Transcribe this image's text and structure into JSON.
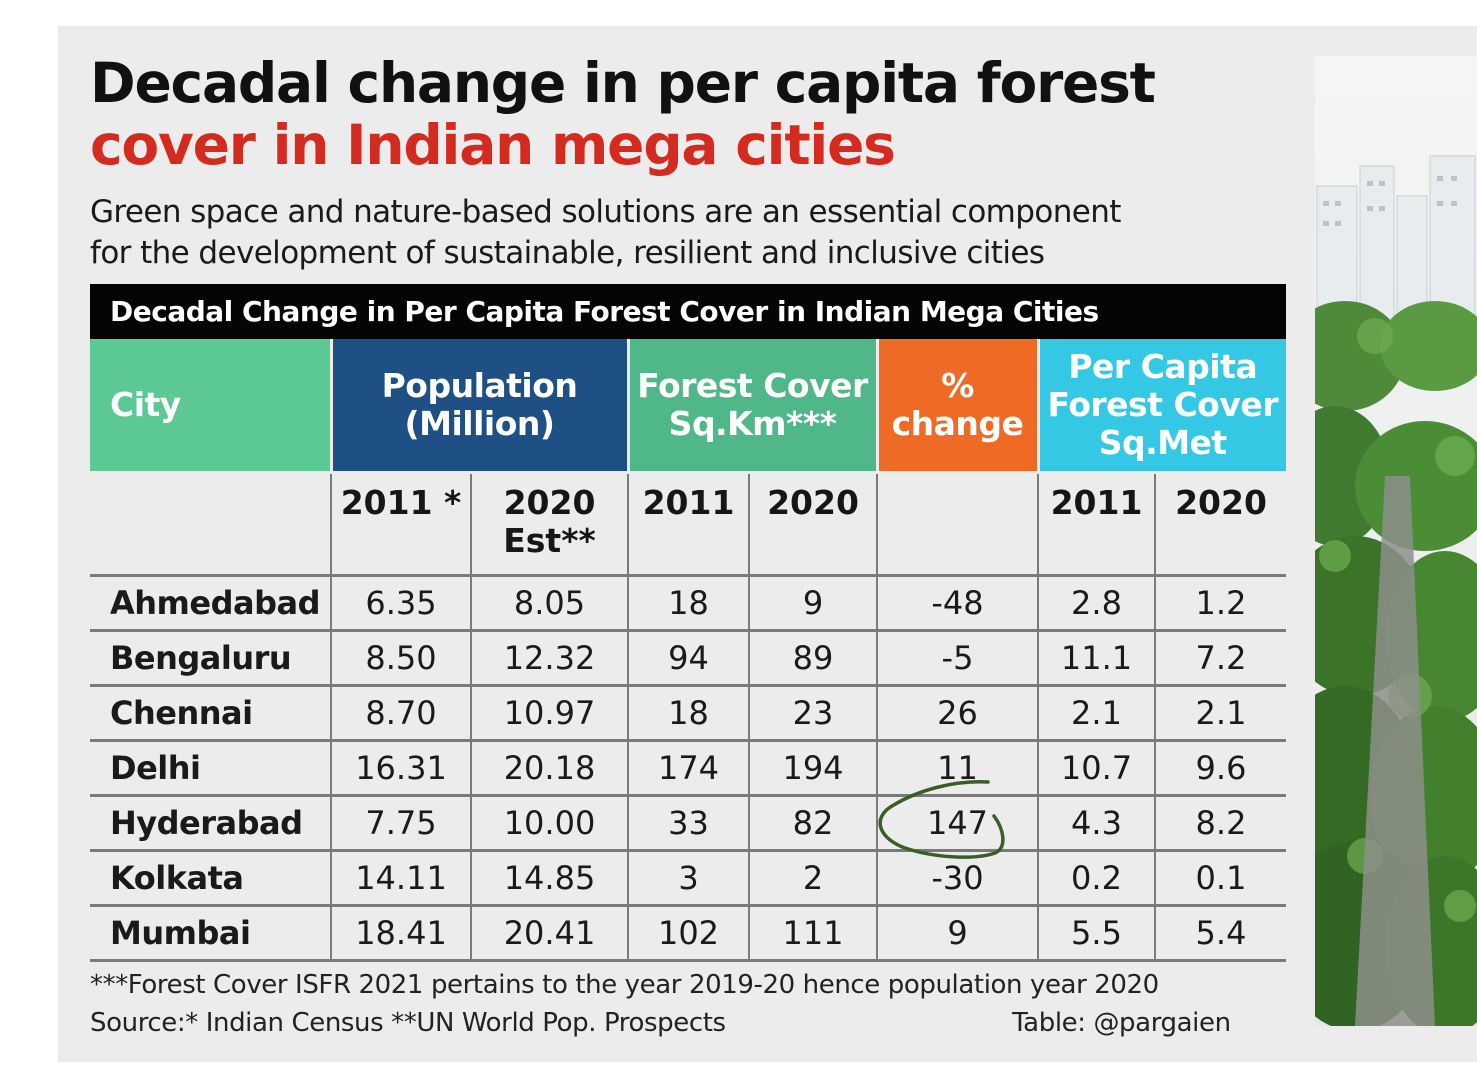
{
  "title_line1": "Decadal change in per capita forest",
  "title_line2": "cover in Indian mega cities",
  "subtitle_line1": "Green space and nature-based solutions are an essential component",
  "subtitle_line2": "for the development of sustainable, resilient and inclusive cities",
  "table_title": "Decadal  Change in Per Capita Forest Cover in Indian Mega Cities",
  "groups": {
    "city": "City",
    "population_l1": "Population",
    "population_l2": "(Million)",
    "forest_l1": "Forest Cover",
    "forest_l2": "Sq.Km***",
    "change_l1": "%",
    "change_l2": "change",
    "percap_l1": "Per Capita",
    "percap_l2": "Forest Cover",
    "percap_l3": "Sq.Met"
  },
  "subheaders": {
    "pop_2011": "2011 *",
    "pop_2020_l1": "2020",
    "pop_2020_l2": "Est**",
    "forest_2011": "2011",
    "forest_2020": "2020",
    "percap_2011": "2011",
    "percap_2020": "2020"
  },
  "rows": [
    {
      "city": "Ahmedabad",
      "pop2011": "6.35",
      "pop2020": "8.05",
      "fc2011": "18",
      "fc2020": "9",
      "change": "-48",
      "pc2011": "2.8",
      "pc2020": "1.2"
    },
    {
      "city": "Bengaluru",
      "pop2011": "8.50",
      "pop2020": "12.32",
      "fc2011": "94",
      "fc2020": "89",
      "change": "-5",
      "pc2011": "11.1",
      "pc2020": "7.2"
    },
    {
      "city": "Chennai",
      "pop2011": "8.70",
      "pop2020": "10.97",
      "fc2011": "18",
      "fc2020": "23",
      "change": "26",
      "pc2011": "2.1",
      "pc2020": "2.1"
    },
    {
      "city": "Delhi",
      "pop2011": "16.31",
      "pop2020": "20.18",
      "fc2011": "174",
      "fc2020": "194",
      "change": "11",
      "pc2011": "10.7",
      "pc2020": "9.6"
    },
    {
      "city": "Hyderabad",
      "pop2011": "7.75",
      "pop2020": "10.00",
      "fc2011": "33",
      "fc2020": "82",
      "change": "147",
      "pc2011": "4.3",
      "pc2020": "8.2"
    },
    {
      "city": "Kolkata",
      "pop2011": "14.11",
      "pop2020": "14.85",
      "fc2011": "3",
      "fc2020": "2",
      "change": "-30",
      "pc2011": "0.2",
      "pc2020": "0.1"
    },
    {
      "city": "Mumbai",
      "pop2011": "18.41",
      "pop2020": "20.41",
      "fc2011": "102",
      "fc2020": "111",
      "change": "9",
      "pc2011": "5.5",
      "pc2020": "5.4"
    }
  ],
  "footnote": "***Forest Cover ISFR 2021 pertains to the year 2019-20 hence population year 2020",
  "source": "Source:* Indian Census **UN World Pop. Prospects",
  "credit": "Table: @pargaien",
  "colors": {
    "city_header": "#5cc994",
    "population_header": "#1e4f85",
    "forest_header": "#4fb788",
    "change_header": "#ef6a24",
    "percap_header": "#35c8e5",
    "title_accent": "#d42b20",
    "annotation_ink": "#3a5e2a"
  },
  "chart_data": {
    "type": "table",
    "title": "Decadal  Change in Per Capita Forest Cover in Indian Mega Cities",
    "columns": [
      "City",
      "Population (Million) 2011 *",
      "Population (Million) 2020 Est**",
      "Forest Cover Sq.Km*** 2011",
      "Forest Cover Sq.Km*** 2020",
      "% change",
      "Per Capita Forest Cover Sq.Met 2011",
      "Per Capita Forest Cover Sq.Met 2020"
    ],
    "categories": [
      "Ahmedabad",
      "Bengaluru",
      "Chennai",
      "Delhi",
      "Hyderabad",
      "Kolkata",
      "Mumbai"
    ],
    "series": [
      {
        "name": "Population 2011 (Million)",
        "values": [
          6.35,
          8.5,
          8.7,
          16.31,
          7.75,
          14.11,
          18.41
        ]
      },
      {
        "name": "Population 2020 Est (Million)",
        "values": [
          8.05,
          12.32,
          10.97,
          20.18,
          10.0,
          14.85,
          20.41
        ]
      },
      {
        "name": "Forest Cover 2011 (Sq.Km)",
        "values": [
          18,
          94,
          18,
          174,
          33,
          3,
          102
        ]
      },
      {
        "name": "Forest Cover 2020 (Sq.Km)",
        "values": [
          9,
          89,
          23,
          194,
          82,
          2,
          111
        ]
      },
      {
        "name": "% change",
        "values": [
          -48,
          -5,
          26,
          11,
          147,
          -30,
          9
        ]
      },
      {
        "name": "Per Capita Forest Cover 2011 (Sq.Met)",
        "values": [
          2.8,
          11.1,
          2.1,
          10.7,
          4.3,
          0.2,
          5.5
        ]
      },
      {
        "name": "Per Capita Forest Cover 2020 (Sq.Met)",
        "values": [
          1.2,
          7.2,
          2.1,
          9.6,
          8.2,
          0.1,
          5.4
        ]
      }
    ],
    "highlighted": {
      "city": "Hyderabad",
      "column": "% change",
      "value": 147
    }
  }
}
